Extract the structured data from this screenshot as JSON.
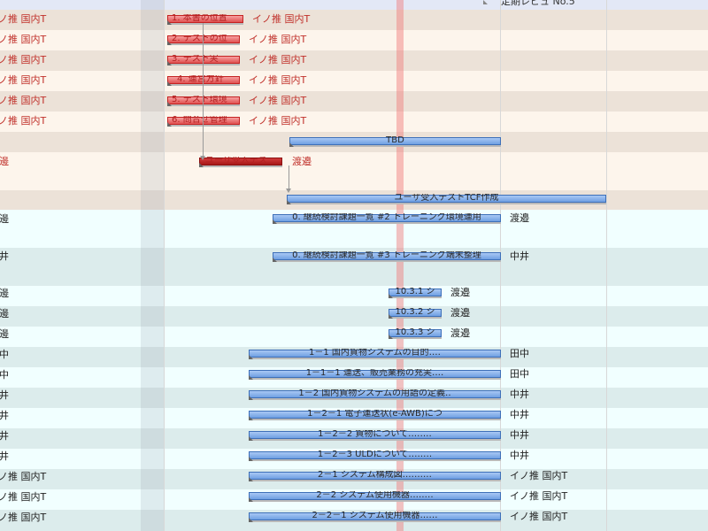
{
  "colors": {
    "header_band": "#e3e8f6",
    "row_beige_a": "#ece2d8",
    "row_beige_b": "#fdf5ec",
    "row_cyan_a": "#f1ffff",
    "row_cyan_b": "#dcecec",
    "bar_blue": "#6f9fe2",
    "bar_red": "#e05050",
    "today_line": "#f07878",
    "resource_red": "#c0302a"
  },
  "top_partial_label": "定期レビュ No.5",
  "rows": [
    {
      "resource": "イノ推 国内T",
      "resource_style": "red",
      "bar_style": "red",
      "bar_label": "1. 本書の位置",
      "side_label": "イノ推 国内T"
    },
    {
      "resource": "イノ推 国内T",
      "resource_style": "red",
      "bar_style": "red",
      "bar_label": "2. テストの位",
      "side_label": "イノ推 国内T"
    },
    {
      "resource": "イノ推 国内T",
      "resource_style": "red",
      "bar_style": "red",
      "bar_label": "3. テスト実",
      "side_label": "イノ推 国内T"
    },
    {
      "resource": "イノ推 国内T",
      "resource_style": "red",
      "bar_style": "red",
      "bar_label": "4. 運営方針",
      "side_label": "イノ推 国内T"
    },
    {
      "resource": "イノ推 国内T",
      "resource_style": "red",
      "bar_style": "red",
      "bar_label": "5. テスト環境",
      "side_label": "イノ推 国内T"
    },
    {
      "resource": "イノ推 国内T",
      "resource_style": "red",
      "bar_style": "red",
      "bar_label": "6. 問合せ管理",
      "side_label": "イノ推 国内T"
    },
    {
      "resource": "",
      "resource_style": "",
      "bar_style": "blue",
      "bar_label": "TBD",
      "side_label": ""
    },
    {
      "resource": "渡邊",
      "resource_style": "red",
      "bar_style": "darkred",
      "bar_label": "ユーザ受入テス",
      "side_label": "渡邉"
    },
    {
      "resource": "",
      "resource_style": "",
      "bar_style": "none",
      "bar_label": "",
      "side_label": ""
    },
    {
      "resource": "",
      "resource_style": "",
      "bar_style": "blue",
      "bar_label": "ユーザ受入テストTCF作成",
      "side_label": ""
    },
    {
      "resource": "渡邊",
      "resource_style": "",
      "bar_style": "blue",
      "bar_label": "0. 継続検討課題一覧 #2 トレーニング環境運用",
      "side_label": "渡邉"
    },
    {
      "resource": "中井",
      "resource_style": "",
      "bar_style": "blue",
      "bar_label": "0. 継続検討課題一覧 #3 トレーニング端末整理",
      "side_label": "中井"
    },
    {
      "resource": "渡邊",
      "resource_style": "",
      "bar_style": "blue",
      "bar_label": "10.3.1 シ",
      "side_label": "渡邉"
    },
    {
      "resource": "渡邊",
      "resource_style": "",
      "bar_style": "blue",
      "bar_label": "10.3.2 シ",
      "side_label": "渡邉"
    },
    {
      "resource": "渡邊",
      "resource_style": "",
      "bar_style": "blue",
      "bar_label": "10.3.3 シ",
      "side_label": "渡邉"
    },
    {
      "resource": "田中",
      "resource_style": "",
      "bar_style": "blue",
      "bar_label": "1－1 国内貨物システムの目的‥‥",
      "side_label": "田中"
    },
    {
      "resource": "田中",
      "resource_style": "",
      "bar_style": "blue",
      "bar_label": "1－1－1 運送、販売業務の充実‥‥",
      "side_label": "田中"
    },
    {
      "resource": "中井",
      "resource_style": "",
      "bar_style": "blue",
      "bar_label": "1－2 国内貨物システムの用語の定義‥",
      "side_label": "中井"
    },
    {
      "resource": "中井",
      "resource_style": "",
      "bar_style": "blue",
      "bar_label": "1－2－1 電子運送状(e-AWB)につ",
      "side_label": "中井"
    },
    {
      "resource": "中井",
      "resource_style": "",
      "bar_style": "blue",
      "bar_label": "1－2－2 貨物について‥‥‥‥",
      "side_label": "中井"
    },
    {
      "resource": "中井",
      "resource_style": "",
      "bar_style": "blue",
      "bar_label": "1－2－3 ULDについて‥‥‥‥",
      "side_label": "中井"
    },
    {
      "resource": "イノ推 国内T",
      "resource_style": "",
      "bar_style": "blue",
      "bar_label": "2－1 システム構成図‥‥‥‥‥",
      "side_label": "イノ推 国内T"
    },
    {
      "resource": "イノ推 国内T",
      "resource_style": "",
      "bar_style": "blue",
      "bar_label": "2－2 システム使用機器‥‥‥‥",
      "side_label": "イノ推 国内T"
    },
    {
      "resource": "イノ推 国内T",
      "resource_style": "",
      "bar_style": "blue",
      "bar_label": "2－2－1 システム使用機器‥‥‥",
      "side_label": "イノ推 国内T"
    }
  ]
}
